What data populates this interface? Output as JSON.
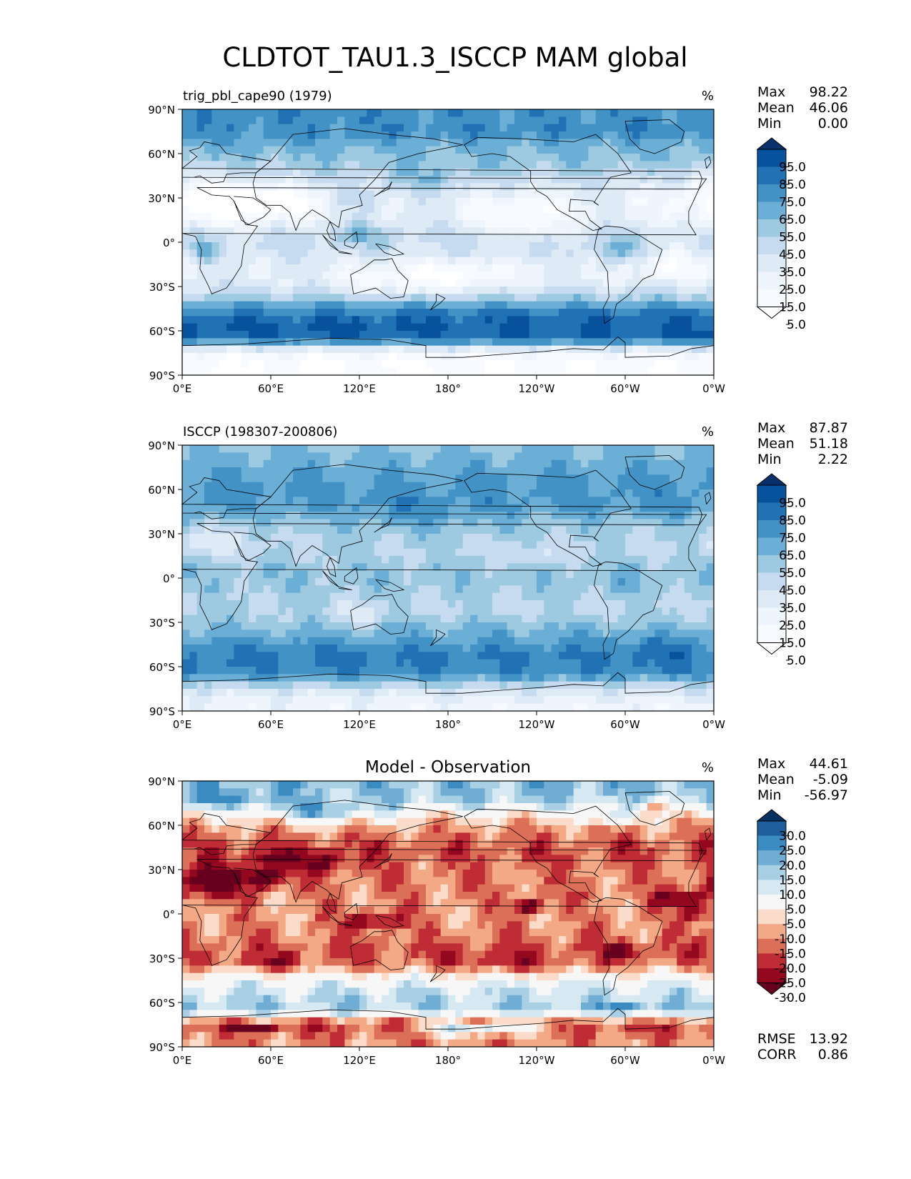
{
  "title": "CLDTOT_TAU1.3_ISCCP MAM global",
  "chart_data": [
    {
      "type": "heatmap",
      "title_left": "trig_pbl_cape90 (1979)",
      "units": "%",
      "stats": [
        {
          "label": "Max",
          "value": "98.22"
        },
        {
          "label": "Mean",
          "value": "46.06"
        },
        {
          "label": "Min",
          "value": "0.00"
        }
      ],
      "y_ticks": [
        "90°N",
        "60°N",
        "30°N",
        "0°",
        "30°S",
        "60°S",
        "90°S"
      ],
      "x_ticks": [
        "0°E",
        "60°E",
        "120°E",
        "180°",
        "120°W",
        "60°W",
        "0°W"
      ],
      "colorbar": {
        "labels": [
          "95.0",
          "85.0",
          "75.0",
          "65.0",
          "55.0",
          "45.0",
          "35.0",
          "25.0",
          "15.0",
          "5.0"
        ],
        "colors": [
          "#08306b",
          "#08519c",
          "#2171b5",
          "#4292c6",
          "#6baed6",
          "#9ecae1",
          "#c6dbef",
          "#deebf7",
          "#eef5fc",
          "#f7fbff",
          "#ffffff"
        ]
      },
      "approx_zonal_mean": [
        {
          "lat": 85,
          "value": 70
        },
        {
          "lat": 75,
          "value": 72
        },
        {
          "lat": 65,
          "value": 58
        },
        {
          "lat": 55,
          "value": 52
        },
        {
          "lat": 45,
          "value": 42
        },
        {
          "lat": 35,
          "value": 32
        },
        {
          "lat": 25,
          "value": 28
        },
        {
          "lat": 15,
          "value": 30
        },
        {
          "lat": 5,
          "value": 38
        },
        {
          "lat": -5,
          "value": 36
        },
        {
          "lat": -15,
          "value": 28
        },
        {
          "lat": -25,
          "value": 26
        },
        {
          "lat": -35,
          "value": 40
        },
        {
          "lat": -45,
          "value": 72
        },
        {
          "lat": -55,
          "value": 86
        },
        {
          "lat": -65,
          "value": 84
        },
        {
          "lat": -75,
          "value": 12
        },
        {
          "lat": -85,
          "value": 5
        }
      ]
    },
    {
      "type": "heatmap",
      "title_left": "ISCCP (198307-200806)",
      "units": "%",
      "stats": [
        {
          "label": "Max",
          "value": "87.87"
        },
        {
          "label": "Mean",
          "value": "51.18"
        },
        {
          "label": "Min",
          "value": "2.22"
        }
      ],
      "y_ticks": [
        "90°N",
        "60°N",
        "30°N",
        "0°",
        "30°S",
        "60°S",
        "90°S"
      ],
      "x_ticks": [
        "0°E",
        "60°E",
        "120°E",
        "180°",
        "120°W",
        "60°W",
        "0°W"
      ],
      "colorbar": {
        "labels": [
          "95.0",
          "85.0",
          "75.0",
          "65.0",
          "55.0",
          "45.0",
          "35.0",
          "25.0",
          "15.0",
          "5.0"
        ],
        "colors": [
          "#08306b",
          "#08519c",
          "#2171b5",
          "#4292c6",
          "#6baed6",
          "#9ecae1",
          "#c6dbef",
          "#deebf7",
          "#eef5fc",
          "#f7fbff",
          "#ffffff"
        ]
      },
      "approx_zonal_mean": [
        {
          "lat": 85,
          "value": 55
        },
        {
          "lat": 75,
          "value": 62
        },
        {
          "lat": 65,
          "value": 66
        },
        {
          "lat": 55,
          "value": 68
        },
        {
          "lat": 45,
          "value": 62
        },
        {
          "lat": 35,
          "value": 50
        },
        {
          "lat": 25,
          "value": 44
        },
        {
          "lat": 15,
          "value": 46
        },
        {
          "lat": 5,
          "value": 52
        },
        {
          "lat": -5,
          "value": 50
        },
        {
          "lat": -15,
          "value": 44
        },
        {
          "lat": -25,
          "value": 46
        },
        {
          "lat": -35,
          "value": 56
        },
        {
          "lat": -45,
          "value": 70
        },
        {
          "lat": -55,
          "value": 76
        },
        {
          "lat": -65,
          "value": 72
        },
        {
          "lat": -75,
          "value": 34
        },
        {
          "lat": -85,
          "value": 20
        }
      ]
    },
    {
      "type": "heatmap",
      "title_center": "Model - Observation",
      "units": "%",
      "stats": [
        {
          "label": "Max",
          "value": "44.61"
        },
        {
          "label": "Mean",
          "value": "-5.09"
        },
        {
          "label": "Min",
          "value": "-56.97"
        }
      ],
      "y_ticks": [
        "90°N",
        "60°N",
        "30°N",
        "0°",
        "30°S",
        "60°S",
        "90°S"
      ],
      "x_ticks": [
        "0°E",
        "60°E",
        "120°E",
        "180°",
        "120°W",
        "60°W",
        "0°W"
      ],
      "colorbar": {
        "labels": [
          "30.0",
          "25.0",
          "20.0",
          "15.0",
          "10.0",
          "5.0",
          "-5.0",
          "-10.0",
          "-15.0",
          "-20.0",
          "-25.0",
          "-30.0"
        ],
        "colors": [
          "#053061",
          "#1f5e9c",
          "#3a8bc1",
          "#6fadd4",
          "#a9cfe5",
          "#d6e8f2",
          "#f7f7f7",
          "#fbdbc9",
          "#f3a886",
          "#dc6f58",
          "#bf2c35",
          "#94081f",
          "#67001f"
        ]
      },
      "footer_stats": [
        {
          "label": "RMSE",
          "value": "13.92"
        },
        {
          "label": "CORR",
          "value": "0.86"
        }
      ],
      "approx_zonal_mean": [
        {
          "lat": 85,
          "value": 15
        },
        {
          "lat": 75,
          "value": 10
        },
        {
          "lat": 65,
          "value": -8
        },
        {
          "lat": 55,
          "value": -15
        },
        {
          "lat": 45,
          "value": -20
        },
        {
          "lat": 35,
          "value": -18
        },
        {
          "lat": 25,
          "value": -16
        },
        {
          "lat": 15,
          "value": -16
        },
        {
          "lat": 5,
          "value": -14
        },
        {
          "lat": -5,
          "value": -14
        },
        {
          "lat": -15,
          "value": -16
        },
        {
          "lat": -25,
          "value": -20
        },
        {
          "lat": -35,
          "value": -16
        },
        {
          "lat": -45,
          "value": 2
        },
        {
          "lat": -55,
          "value": 10
        },
        {
          "lat": -65,
          "value": 12
        },
        {
          "lat": -75,
          "value": -22
        },
        {
          "lat": -85,
          "value": -15
        }
      ]
    }
  ]
}
